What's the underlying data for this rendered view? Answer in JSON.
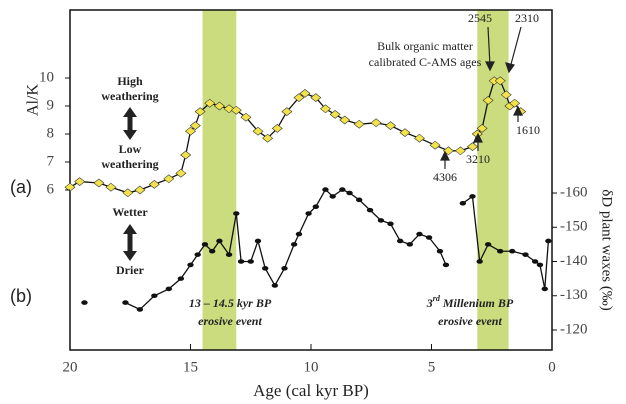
{
  "chart_data": {
    "type": "line",
    "x_label": "Age (cal  kyr BP)",
    "y_label": "Al/K",
    "y2_label": "δD plant waxes (‰)",
    "xlim": [
      20,
      0
    ],
    "xticks": [
      20,
      15,
      10,
      5,
      0
    ],
    "ylim": [
      6,
      10
    ],
    "yticks": [
      6,
      7,
      8,
      9,
      10
    ],
    "y2lim": [
      -120,
      -160
    ],
    "y2ticks": [
      -160,
      -150,
      -140,
      -130,
      -120
    ],
    "bands": [
      [
        14.5,
        13.1
      ],
      [
        3.1,
        1.8
      ]
    ],
    "band_color": "#cbdc7e",
    "series": [
      {
        "color": "#f2e34a",
        "axis": "y",
        "x": [
          20,
          19.6,
          18.8,
          18.3,
          17.6,
          17.1,
          16.5,
          15.9,
          15.4,
          15.2,
          15.0,
          14.8,
          14.6,
          14.2,
          13.8,
          13.4,
          13.1,
          12.7,
          12.2,
          11.8,
          11.4,
          11.0,
          10.5,
          10.25,
          9.8,
          9.4,
          9.0,
          8.6,
          8.0,
          7.3,
          6.7,
          6.1,
          5.5,
          4.85,
          4.3,
          3.8,
          3.3,
          3.1,
          2.9,
          2.65,
          2.4,
          2.15,
          1.9,
          1.75,
          1.55,
          1.3
        ],
        "values": [
          6.1,
          6.3,
          6.25,
          6.1,
          5.9,
          6.0,
          6.2,
          6.4,
          6.6,
          7.25,
          8.1,
          8.3,
          8.8,
          9.1,
          9.0,
          8.9,
          8.85,
          8.6,
          8.1,
          7.85,
          8.2,
          8.8,
          9.3,
          9.45,
          9.3,
          8.9,
          8.7,
          8.5,
          8.35,
          8.4,
          8.3,
          8.05,
          7.85,
          7.6,
          7.4,
          7.4,
          7.55,
          8.0,
          8.2,
          9.2,
          9.9,
          9.9,
          9.4,
          9.0,
          9.1,
          8.8
        ]
      },
      {
        "color": "#111111",
        "axis": "y2",
        "x": [
          19.4,
          null,
          17.7,
          17.1,
          16.5,
          15.9,
          15.4,
          15.0,
          14.7,
          14.4,
          14.1,
          13.8,
          13.4,
          13.1,
          12.9,
          12.5,
          12.2,
          11.9,
          11.5,
          11.1,
          10.7,
          10.5,
          10.1,
          9.8,
          9.4,
          9.1,
          8.7,
          8.4,
          8.0,
          7.55,
          7.1,
          6.7,
          6.3,
          5.9,
          5.5,
          5.1,
          4.65,
          4.4,
          null,
          3.7,
          3.3,
          3.0,
          2.65,
          2.15,
          1.65,
          1.1,
          0.7,
          0.5,
          0.3,
          0.15
        ],
        "values": [
          -128,
          null,
          -128,
          -126,
          -130,
          -132,
          -135,
          -139,
          -142,
          -145,
          -143,
          -146,
          -142,
          -154,
          -140,
          -140,
          -146,
          -138,
          -133,
          -138,
          -145,
          -148,
          -154,
          -156,
          -161,
          -159,
          -161,
          -160,
          -158,
          -155,
          -152,
          -151,
          -146,
          -145,
          -148,
          -147,
          -143,
          -139,
          null,
          -157,
          -159,
          -140,
          -145,
          -143,
          -143,
          -142,
          -140,
          -139,
          -132,
          -146
        ]
      }
    ],
    "annotations": {
      "panel_a": "(a)",
      "panel_b": "(b)",
      "high": "High",
      "high2": "weathering",
      "low": "Low",
      "low2": "weathering",
      "wetter": "Wetter",
      "drier": "Drier",
      "bulk1": "Bulk organic matter",
      "bulk2": "calibrated C-AMS ages",
      "age_2545": "2545",
      "age_2310": "2310",
      "age_1610": "1610",
      "age_3210": "3210",
      "age_4306": "4306",
      "event1a": "13 – 14.5 kyr BP",
      "event1b": "erosive event",
      "event2a_num": "3",
      "event2a_sup": "rd",
      "event2a_rest": " Millenium BP",
      "event2b": "erosive event"
    }
  }
}
